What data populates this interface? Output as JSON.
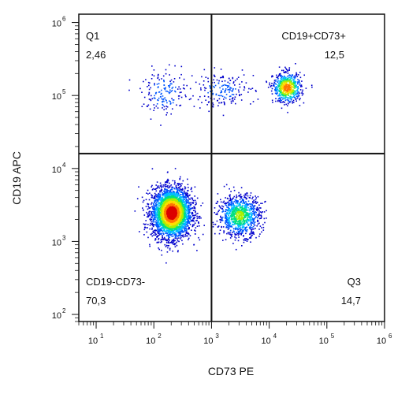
{
  "chart_data": {
    "type": "scatter",
    "subtype": "flow-cytometry-density-dot-plot",
    "xlabel": "CD73 PE",
    "ylabel": "CD19 APC",
    "x_scale": "log",
    "y_scale": "log",
    "xlim": [
      5,
      1000000
    ],
    "ylim": [
      80,
      1300000
    ],
    "x_ticks": [
      {
        "base": "10",
        "exp": "1",
        "value": 10
      },
      {
        "base": "10",
        "exp": "2",
        "value": 100
      },
      {
        "base": "10",
        "exp": "3",
        "value": 1000
      },
      {
        "base": "10",
        "exp": "4",
        "value": 10000
      },
      {
        "base": "10",
        "exp": "5",
        "value": 100000
      },
      {
        "base": "10",
        "exp": "6",
        "value": 1000000
      }
    ],
    "y_ticks": [
      {
        "base": "10",
        "exp": "2",
        "value": 100
      },
      {
        "base": "10",
        "exp": "3",
        "value": 1000
      },
      {
        "base": "10",
        "exp": "4",
        "value": 10000
      },
      {
        "base": "10",
        "exp": "5",
        "value": 100000
      },
      {
        "base": "10",
        "exp": "6",
        "value": 1000000
      }
    ],
    "gates": {
      "x": 1000,
      "y": 16000
    },
    "quadrants": [
      {
        "name": "Q1",
        "value": "2,46",
        "position": "top-left"
      },
      {
        "name": "CD19+CD73+",
        "value": "12,5",
        "position": "top-right"
      },
      {
        "name": "CD19-CD73-",
        "value": "70,3",
        "position": "bottom-left"
      },
      {
        "name": "Q3",
        "value": "14,7",
        "position": "bottom-right"
      }
    ],
    "populations": [
      {
        "x": 200,
        "y": 2500,
        "sx": 0.17,
        "sy": 0.17,
        "n": 3400,
        "peak": 1.0
      },
      {
        "x": 3000,
        "y": 2300,
        "sx": 0.18,
        "sy": 0.14,
        "n": 1000,
        "peak": 0.55
      },
      {
        "x": 20000,
        "y": 130000,
        "sx": 0.12,
        "sy": 0.1,
        "n": 650,
        "peak": 0.85
      },
      {
        "x": 150,
        "y": 110000,
        "sx": 0.2,
        "sy": 0.15,
        "n": 160,
        "peak": 0.25
      },
      {
        "x": 1500,
        "y": 120000,
        "sx": 0.28,
        "sy": 0.12,
        "n": 180,
        "peak": 0.2
      }
    ],
    "grid": false,
    "colormap": [
      "#0000cc",
      "#0055ff",
      "#00bbff",
      "#00e080",
      "#aaee00",
      "#ffdd00",
      "#ff7700",
      "#dd0000"
    ]
  }
}
